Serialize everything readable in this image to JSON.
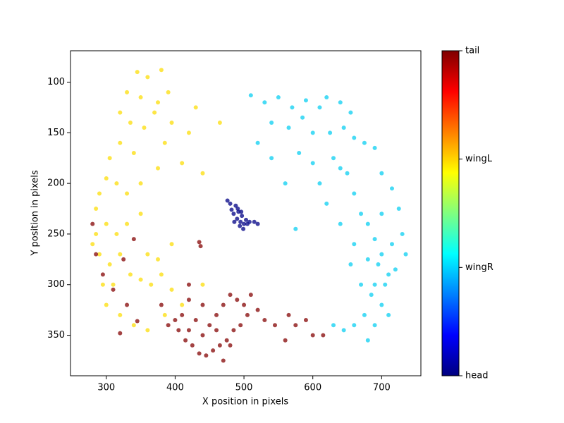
{
  "chart_data": {
    "type": "scatter",
    "xlabel": "X position in pixels",
    "ylabel": "Y position in pixels",
    "xlim": [
      248,
      757
    ],
    "xticks": [
      300,
      400,
      500,
      600,
      700
    ],
    "ylim": [
      69,
      390
    ],
    "y_inverted": true,
    "yticks": [
      100,
      150,
      200,
      250,
      300,
      350
    ],
    "colorbar": {
      "colormap": "jet",
      "clim": [
        0,
        3
      ],
      "ticks": [
        0,
        1,
        2,
        3
      ]
    },
    "series": [
      {
        "name": "head",
        "color": "#10108c",
        "x": [
          485,
          490,
          495,
          500,
          492,
          488,
          497,
          503,
          480,
          476,
          494,
          499,
          505,
          486,
          491,
          508,
          515,
          520,
          482,
          496
        ],
        "values": [
          230,
          235,
          238,
          240,
          228,
          222,
          232,
          236,
          220,
          217,
          242,
          245,
          240,
          238,
          225,
          238,
          238,
          240,
          226,
          228
        ]
      },
      {
        "name": "wingR",
        "color": "#1ad2f2",
        "x": [
          510,
          530,
          550,
          570,
          590,
          610,
          620,
          640,
          655,
          540,
          565,
          585,
          600,
          625,
          645,
          660,
          675,
          690,
          700,
          715,
          725,
          730,
          735,
          720,
          705,
          700,
          690,
          680,
          710,
          695,
          700,
          690,
          680,
          670,
          660,
          650,
          640,
          630,
          600,
          580,
          560,
          620,
          640,
          660,
          680,
          690,
          675,
          660,
          645,
          630,
          700,
          715,
          710,
          575,
          540,
          520,
          610,
          655,
          670,
          685
        ],
        "values": [
          113,
          120,
          115,
          125,
          118,
          125,
          115,
          120,
          130,
          140,
          145,
          135,
          150,
          150,
          145,
          155,
          160,
          165,
          190,
          205,
          225,
          250,
          270,
          285,
          300,
          320,
          340,
          355,
          330,
          280,
          270,
          255,
          240,
          230,
          210,
          190,
          185,
          175,
          180,
          170,
          200,
          220,
          240,
          260,
          275,
          300,
          330,
          340,
          345,
          340,
          230,
          260,
          290,
          245,
          175,
          160,
          200,
          280,
          300,
          310
        ]
      },
      {
        "name": "wingL",
        "color": "#fde018",
        "x": [
          345,
          360,
          380,
          390,
          375,
          350,
          330,
          320,
          335,
          355,
          370,
          395,
          420,
          410,
          385,
          340,
          320,
          305,
          300,
          315,
          330,
          290,
          285,
          300,
          315,
          280,
          290,
          305,
          320,
          335,
          350,
          365,
          380,
          395,
          410,
          385,
          360,
          340,
          320,
          300,
          295,
          310,
          285,
          350,
          375,
          430,
          465,
          440,
          395,
          350,
          330,
          360,
          375,
          440
        ],
        "values": [
          90,
          95,
          88,
          110,
          120,
          115,
          110,
          130,
          140,
          145,
          130,
          140,
          150,
          180,
          160,
          170,
          160,
          175,
          195,
          200,
          210,
          210,
          225,
          240,
          250,
          260,
          270,
          280,
          270,
          290,
          295,
          300,
          290,
          305,
          320,
          330,
          345,
          340,
          330,
          320,
          300,
          300,
          250,
          200,
          185,
          125,
          140,
          190,
          260,
          230,
          240,
          270,
          275,
          300
        ]
      },
      {
        "name": "tail",
        "color": "#8c1414",
        "x": [
          410,
          420,
          430,
          440,
          450,
          460,
          470,
          480,
          490,
          500,
          505,
          495,
          485,
          475,
          465,
          455,
          445,
          435,
          425,
          415,
          405,
          400,
          420,
          440,
          460,
          480,
          470,
          510,
          520,
          530,
          545,
          560,
          575,
          590,
          600,
          615,
          565,
          420,
          435,
          437,
          280,
          285,
          295,
          310,
          325,
          340,
          330,
          320,
          345,
          380,
          390
        ],
        "values": [
          330,
          345,
          335,
          350,
          340,
          330,
          320,
          310,
          315,
          320,
          330,
          340,
          345,
          355,
          360,
          365,
          370,
          368,
          360,
          355,
          345,
          335,
          315,
          320,
          345,
          360,
          375,
          310,
          325,
          335,
          340,
          355,
          340,
          335,
          350,
          350,
          330,
          300,
          258,
          262,
          240,
          270,
          290,
          305,
          275,
          255,
          320,
          348,
          336,
          320,
          340
        ]
      }
    ]
  }
}
